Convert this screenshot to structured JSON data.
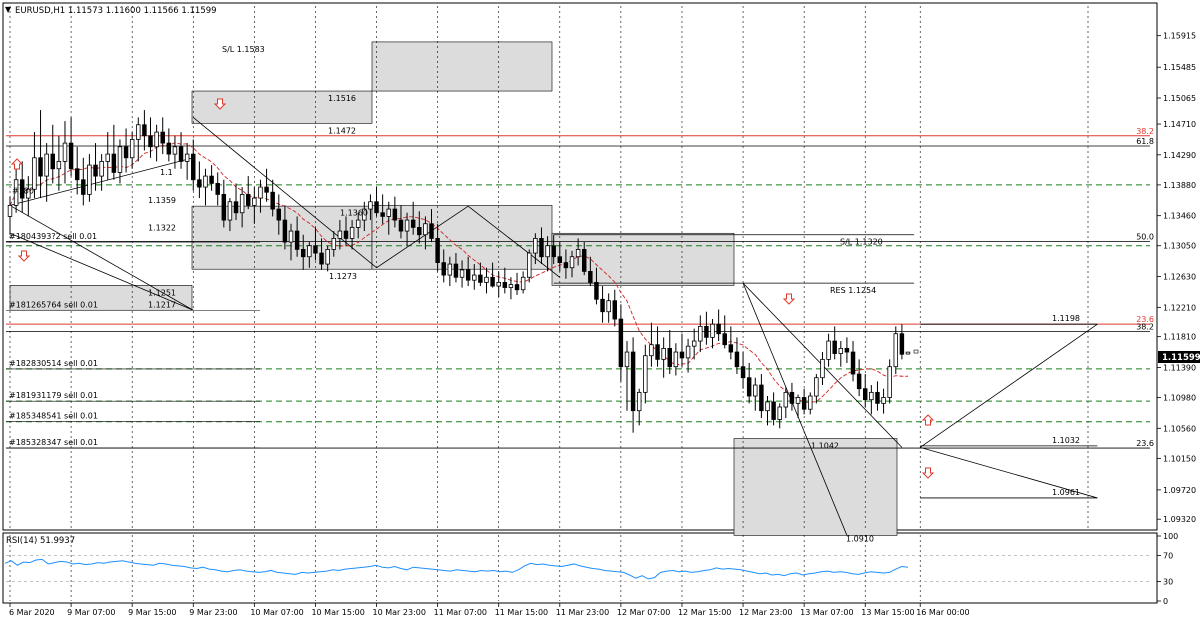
{
  "header": {
    "symbol_line": "EURUSD,H1  1.11573 1.11600 1.11566 1.11599",
    "menu_icon": "triangle-down-icon"
  },
  "rsi_header": "RSI(14) 51.9937",
  "colors": {
    "bull": "#ffffff",
    "bear": "#000000",
    "fib_red": "#e0392e",
    "green_dash": "#1a7f1a",
    "zone_fill": "#dcdcdc",
    "ma_red": "#d22222",
    "rsi_blue": "#1e90ff",
    "price_label_bg": "#000000"
  },
  "chart_data": {
    "type": "candlestick",
    "symbol": "EURUSD",
    "timeframe": "H1",
    "last_price": "1.11599",
    "ohlc_header": {
      "open": 1.11573,
      "high": 1.116,
      "low": 1.11566,
      "close": 1.11599
    },
    "ylim": [
      1.092,
      1.1632
    ],
    "y_ticks": [
      "1.15915",
      "1.15485",
      "1.15065",
      "1.14710",
      "1.14290",
      "1.13880",
      "1.13460",
      "1.13050",
      "1.12630",
      "1.12210",
      "1.11810",
      "1.11390",
      "1.10980",
      "1.10560",
      "1.10150",
      "1.09720",
      "1.09320"
    ],
    "y_tick_values": [
      1.15915,
      1.15485,
      1.15065,
      1.1471,
      1.1429,
      1.1388,
      1.1346,
      1.1305,
      1.1263,
      1.1221,
      1.1181,
      1.1139,
      1.1098,
      1.1056,
      1.1015,
      1.0972,
      1.0932
    ],
    "x_ticks": [
      "6 Mar 2020",
      "9 Mar 07:00",
      "9 Mar 15:00",
      "9 Mar 23:00",
      "10 Mar 07:00",
      "10 Mar 15:00",
      "10 Mar 23:00",
      "11 Mar 07:00",
      "11 Mar 15:00",
      "11 Mar 23:00",
      "12 Mar 07:00",
      "12 Mar 15:00",
      "12 Mar 23:00",
      "13 Mar 07:00",
      "13 Mar 15:00",
      "16 Mar 00:00"
    ],
    "x_tick_index": [
      0,
      10,
      20,
      30,
      40,
      50,
      60,
      70,
      80,
      90,
      100,
      110,
      120,
      130,
      140,
      149
    ],
    "candles": [
      [
        1.1345,
        1.1372,
        1.132,
        1.136
      ],
      [
        1.136,
        1.1411,
        1.135,
        1.1395
      ],
      [
        1.1395,
        1.142,
        1.135,
        1.137
      ],
      [
        1.137,
        1.14,
        1.1345,
        1.1382
      ],
      [
        1.1382,
        1.146,
        1.137,
        1.1425
      ],
      [
        1.1425,
        1.149,
        1.137,
        1.14
      ],
      [
        1.14,
        1.1445,
        1.1365,
        1.143
      ],
      [
        1.143,
        1.147,
        1.139,
        1.141
      ],
      [
        1.141,
        1.1455,
        1.138,
        1.142
      ],
      [
        1.142,
        1.1475,
        1.139,
        1.1445
      ],
      [
        1.1445,
        1.148,
        1.14,
        1.141
      ],
      [
        1.141,
        1.144,
        1.1375,
        1.1395
      ],
      [
        1.1395,
        1.1425,
        1.136,
        1.1375
      ],
      [
        1.1375,
        1.143,
        1.1365,
        1.1415
      ],
      [
        1.1415,
        1.1445,
        1.138,
        1.14
      ],
      [
        1.14,
        1.143,
        1.138,
        1.142
      ],
      [
        1.142,
        1.146,
        1.1395,
        1.143
      ],
      [
        1.143,
        1.147,
        1.1395,
        1.1405
      ],
      [
        1.1405,
        1.145,
        1.139,
        1.144
      ],
      [
        1.144,
        1.1465,
        1.1405,
        1.1425
      ],
      [
        1.1425,
        1.146,
        1.141,
        1.145
      ],
      [
        1.145,
        1.148,
        1.142,
        1.147
      ],
      [
        1.147,
        1.149,
        1.1435,
        1.1455
      ],
      [
        1.1455,
        1.148,
        1.1425,
        1.144
      ],
      [
        1.144,
        1.147,
        1.142,
        1.146
      ],
      [
        1.146,
        1.148,
        1.143,
        1.1445
      ],
      [
        1.1445,
        1.1465,
        1.142,
        1.143
      ],
      [
        1.143,
        1.1455,
        1.141,
        1.144
      ],
      [
        1.144,
        1.146,
        1.141,
        1.142
      ],
      [
        1.142,
        1.1445,
        1.1395,
        1.143
      ],
      [
        1.143,
        1.145,
        1.138,
        1.1395
      ],
      [
        1.1395,
        1.142,
        1.137,
        1.1385
      ],
      [
        1.1385,
        1.141,
        1.136,
        1.14
      ],
      [
        1.14,
        1.1415,
        1.138,
        1.139
      ],
      [
        1.139,
        1.1405,
        1.136,
        1.1375
      ],
      [
        1.1375,
        1.1395,
        1.133,
        1.134
      ],
      [
        1.134,
        1.137,
        1.1325,
        1.1365
      ],
      [
        1.1365,
        1.139,
        1.134,
        1.135
      ],
      [
        1.135,
        1.1385,
        1.133,
        1.1375
      ],
      [
        1.1375,
        1.14,
        1.1355,
        1.136
      ],
      [
        1.136,
        1.1385,
        1.1335,
        1.137
      ],
      [
        1.137,
        1.1395,
        1.135,
        1.1385
      ],
      [
        1.1385,
        1.141,
        1.1365,
        1.1378
      ],
      [
        1.1378,
        1.1395,
        1.1345,
        1.1355
      ],
      [
        1.1355,
        1.1375,
        1.132,
        1.134
      ],
      [
        1.134,
        1.136,
        1.13,
        1.131
      ],
      [
        1.131,
        1.1335,
        1.1285,
        1.1325
      ],
      [
        1.1325,
        1.1345,
        1.129,
        1.13
      ],
      [
        1.13,
        1.132,
        1.1272,
        1.129
      ],
      [
        1.129,
        1.131,
        1.1275,
        1.1305
      ],
      [
        1.1305,
        1.133,
        1.1285,
        1.1295
      ],
      [
        1.1295,
        1.1315,
        1.1272,
        1.128
      ],
      [
        1.128,
        1.1305,
        1.127,
        1.13
      ],
      [
        1.13,
        1.1325,
        1.129,
        1.1315
      ],
      [
        1.1315,
        1.134,
        1.13,
        1.1325
      ],
      [
        1.1325,
        1.1345,
        1.1305,
        1.1315
      ],
      [
        1.1315,
        1.134,
        1.13,
        1.133
      ],
      [
        1.133,
        1.135,
        1.1315,
        1.134
      ],
      [
        1.134,
        1.1365,
        1.1325,
        1.1355
      ],
      [
        1.1355,
        1.1375,
        1.134,
        1.1365
      ],
      [
        1.1365,
        1.1385,
        1.1345,
        1.135
      ],
      [
        1.135,
        1.1375,
        1.1335,
        1.1345
      ],
      [
        1.1345,
        1.1365,
        1.132,
        1.1355
      ],
      [
        1.1355,
        1.1372,
        1.133,
        1.134
      ],
      [
        1.134,
        1.136,
        1.1315,
        1.1325
      ],
      [
        1.1325,
        1.135,
        1.1305,
        1.134
      ],
      [
        1.134,
        1.1365,
        1.132,
        1.133
      ],
      [
        1.133,
        1.1352,
        1.1308,
        1.132
      ],
      [
        1.132,
        1.1345,
        1.13,
        1.1335
      ],
      [
        1.1335,
        1.1355,
        1.131,
        1.1315
      ],
      [
        1.1315,
        1.1335,
        1.127,
        1.1282
      ],
      [
        1.1282,
        1.13,
        1.1255,
        1.1265
      ],
      [
        1.1265,
        1.129,
        1.125,
        1.128
      ],
      [
        1.128,
        1.1295,
        1.1255,
        1.1262
      ],
      [
        1.1262,
        1.1285,
        1.1248,
        1.1272
      ],
      [
        1.1272,
        1.129,
        1.125,
        1.1258
      ],
      [
        1.1258,
        1.128,
        1.1245,
        1.1265
      ],
      [
        1.1265,
        1.1282,
        1.125,
        1.1255
      ],
      [
        1.1255,
        1.1275,
        1.124,
        1.1262
      ],
      [
        1.1262,
        1.1282,
        1.1248,
        1.125
      ],
      [
        1.125,
        1.127,
        1.1235,
        1.1255
      ],
      [
        1.1255,
        1.1275,
        1.124,
        1.1248
      ],
      [
        1.1248,
        1.1262,
        1.1232,
        1.1252
      ],
      [
        1.1252,
        1.1268,
        1.1238,
        1.1245
      ],
      [
        1.1245,
        1.127,
        1.124,
        1.1262
      ],
      [
        1.1262,
        1.13,
        1.1255,
        1.1295
      ],
      [
        1.1295,
        1.1322,
        1.128,
        1.1315
      ],
      [
        1.1315,
        1.133,
        1.128,
        1.129
      ],
      [
        1.129,
        1.1318,
        1.127,
        1.1305
      ],
      [
        1.1305,
        1.132,
        1.128,
        1.129
      ],
      [
        1.129,
        1.131,
        1.127,
        1.1282
      ],
      [
        1.1282,
        1.13,
        1.126,
        1.1275
      ],
      [
        1.1275,
        1.1298,
        1.1262,
        1.129
      ],
      [
        1.129,
        1.1315,
        1.1278,
        1.13
      ],
      [
        1.13,
        1.131,
        1.1265,
        1.127
      ],
      [
        1.127,
        1.129,
        1.125,
        1.1255
      ],
      [
        1.1255,
        1.1275,
        1.1225,
        1.1232
      ],
      [
        1.1232,
        1.125,
        1.12,
        1.1215
      ],
      [
        1.1215,
        1.124,
        1.12,
        1.123
      ],
      [
        1.123,
        1.1245,
        1.1195,
        1.1205
      ],
      [
        1.1205,
        1.1225,
        1.112,
        1.114
      ],
      [
        1.114,
        1.1175,
        1.108,
        1.116
      ],
      [
        1.116,
        1.118,
        1.105,
        1.108
      ],
      [
        1.108,
        1.111,
        1.106,
        1.1105
      ],
      [
        1.1105,
        1.117,
        1.109,
        1.1155
      ],
      [
        1.1155,
        1.12,
        1.114,
        1.117
      ],
      [
        1.117,
        1.1195,
        1.114,
        1.115
      ],
      [
        1.115,
        1.118,
        1.1125,
        1.1165
      ],
      [
        1.1165,
        1.119,
        1.113,
        1.114
      ],
      [
        1.114,
        1.1172,
        1.1128,
        1.116
      ],
      [
        1.116,
        1.1185,
        1.114,
        1.1152
      ],
      [
        1.1152,
        1.1178,
        1.1132,
        1.1168
      ],
      [
        1.1168,
        1.1192,
        1.115,
        1.1175
      ],
      [
        1.1175,
        1.121,
        1.116,
        1.1195
      ],
      [
        1.1195,
        1.1215,
        1.117,
        1.118
      ],
      [
        1.118,
        1.1205,
        1.1165,
        1.1198
      ],
      [
        1.1198,
        1.1218,
        1.1175,
        1.1185
      ],
      [
        1.1185,
        1.121,
        1.1165,
        1.117
      ],
      [
        1.117,
        1.1195,
        1.115,
        1.116
      ],
      [
        1.116,
        1.118,
        1.113,
        1.114
      ],
      [
        1.114,
        1.116,
        1.111,
        1.1125
      ],
      [
        1.1125,
        1.1145,
        1.109,
        1.11
      ],
      [
        1.11,
        1.1125,
        1.108,
        1.1115
      ],
      [
        1.1115,
        1.113,
        1.107,
        1.108
      ],
      [
        1.108,
        1.11,
        1.106,
        1.1092
      ],
      [
        1.1092,
        1.1105,
        1.106,
        1.1068
      ],
      [
        1.1068,
        1.109,
        1.1056,
        1.1085
      ],
      [
        1.1085,
        1.1112,
        1.107,
        1.1105
      ],
      [
        1.1105,
        1.1118,
        1.108,
        1.109
      ],
      [
        1.109,
        1.1102,
        1.107,
        1.1098
      ],
      [
        1.1098,
        1.111,
        1.1075,
        1.1082
      ],
      [
        1.1082,
        1.1105,
        1.1075,
        1.11
      ],
      [
        1.11,
        1.113,
        1.109,
        1.1125
      ],
      [
        1.1125,
        1.116,
        1.1115,
        1.115
      ],
      [
        1.115,
        1.1185,
        1.114,
        1.1175
      ],
      [
        1.1175,
        1.1195,
        1.115,
        1.1158
      ],
      [
        1.1158,
        1.1175,
        1.114,
        1.1165
      ],
      [
        1.1165,
        1.118,
        1.1145,
        1.116
      ],
      [
        1.116,
        1.1175,
        1.112,
        1.113
      ],
      [
        1.113,
        1.115,
        1.11,
        1.111
      ],
      [
        1.111,
        1.113,
        1.1085,
        1.1095
      ],
      [
        1.1095,
        1.1115,
        1.1075,
        1.1105
      ],
      [
        1.1105,
        1.112,
        1.108,
        1.109
      ],
      [
        1.109,
        1.111,
        1.1076,
        1.1098
      ],
      [
        1.1098,
        1.115,
        1.109,
        1.114
      ],
      [
        1.114,
        1.1195,
        1.113,
        1.1185
      ],
      [
        1.1185,
        1.1198,
        1.115,
        1.1157
      ],
      [
        1.11573,
        1.116,
        1.11566,
        1.11599
      ]
    ],
    "horizontal_lines": [
      {
        "price": 1.1455,
        "color": "red",
        "label": "38.2"
      },
      {
        "price": 1.1441,
        "color": "black",
        "label": "61.8"
      },
      {
        "price": 1.1388,
        "color": "green-dash",
        "label": ""
      },
      {
        "price": 1.1311,
        "color": "black",
        "label": "50.0"
      },
      {
        "price": 1.1305,
        "color": "green-dash",
        "label": ""
      },
      {
        "price": 1.1198,
        "color": "red",
        "label": "23.6"
      },
      {
        "price": 1.1188,
        "color": "black",
        "label": "38.2"
      },
      {
        "price": 1.1137,
        "color": "green-dash",
        "label": ""
      },
      {
        "price": 1.1093,
        "color": "green-dash",
        "label": ""
      },
      {
        "price": 1.1065,
        "color": "green-dash",
        "label": ""
      },
      {
        "price": 1.1029,
        "color": "black",
        "label": "23.6"
      }
    ],
    "orders": [
      {
        "text": "#1804393?2 sell 0.01",
        "price": 1.131
      },
      {
        "text": "#181265764 sell 0.01",
        "price": 1.1217
      },
      {
        "text": "#182830514 sell 0.01",
        "price": 1.1137
      },
      {
        "text": "#181931179 sell 0.01",
        "price": 1.1093
      },
      {
        "text": "#185348541 sell 0.01",
        "price": 1.1065
      },
      {
        "text": "#185328347 sell 0.01",
        "price": 1.1029
      }
    ],
    "annotations": [
      "S/L 1.1583",
      "1.1516",
      "1.1472",
      "1.1359",
      "1.1360",
      "1.1322",
      "1.1251",
      "1.1217",
      "1.1273",
      "S/L 1.1320",
      "RES 1.1254",
      "1.1198",
      "1.1042",
      "1.1032",
      "1.0961",
      "#180",
      "1.1",
      "1.0910"
    ],
    "rsi": {
      "name": "RSI(14)",
      "last": 51.9937,
      "ylim": [
        0,
        100
      ],
      "levels": [
        70,
        30
      ],
      "y_ticks": [
        "100",
        "70",
        "30",
        "0"
      ],
      "values": [
        58,
        62,
        55,
        60,
        59,
        63,
        64,
        57,
        59,
        61,
        60,
        57,
        58,
        56,
        57,
        59,
        58,
        60,
        61,
        62,
        60,
        58,
        57,
        56,
        55,
        58,
        57,
        55,
        54,
        53,
        51,
        50,
        52,
        49,
        48,
        46,
        45,
        47,
        48,
        46,
        45,
        44,
        45,
        47,
        44,
        43,
        42,
        41,
        44,
        43,
        44,
        45,
        46,
        48,
        47,
        49,
        50,
        51,
        52,
        53,
        55,
        52,
        51,
        53,
        50,
        48,
        52,
        51,
        50,
        49,
        48,
        47,
        46,
        48,
        47,
        46,
        45,
        47,
        46,
        47,
        45,
        46,
        44,
        48,
        54,
        58,
        56,
        57,
        55,
        54,
        53,
        55,
        57,
        54,
        52,
        50,
        49,
        47,
        46,
        45,
        44,
        40,
        35,
        39,
        34,
        36,
        44,
        46,
        47,
        45,
        46,
        44,
        45,
        47,
        48,
        51,
        49,
        50,
        49,
        48,
        46,
        44,
        42,
        43,
        40,
        41,
        39,
        42,
        43,
        40,
        42,
        43,
        45,
        46,
        44,
        45,
        44,
        42,
        41,
        43,
        45,
        44,
        43,
        44,
        49,
        53,
        51.9937
      ]
    }
  },
  "price_tag": "1.11599"
}
